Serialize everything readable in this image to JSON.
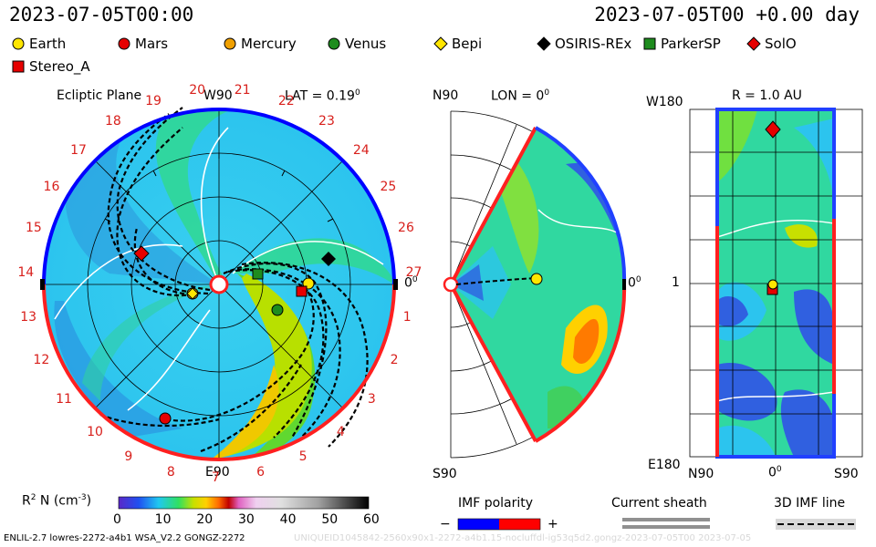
{
  "header": {
    "timestamp": "2023-07-05T00:00",
    "relative_time": "2023-07-05T00 +0.00 day"
  },
  "legend": [
    {
      "name": "Earth",
      "marker": "circle",
      "color": "#ffe600"
    },
    {
      "name": "Mars",
      "marker": "circle",
      "color": "#e60000"
    },
    {
      "name": "Mercury",
      "marker": "circle",
      "color": "#f0a000"
    },
    {
      "name": "Venus",
      "marker": "circle",
      "color": "#1e8c1e"
    },
    {
      "name": "Bepi",
      "marker": "diamond",
      "color": "#ffe600"
    },
    {
      "name": "OSIRIS-REx",
      "marker": "diamond",
      "color": "#000000"
    },
    {
      "name": "ParkerSP",
      "marker": "square",
      "color": "#1e8c1e"
    },
    {
      "name": "SolO",
      "marker": "diamond",
      "color": "#e60000"
    },
    {
      "name": "Stereo_A",
      "marker": "square",
      "color": "#e60000"
    }
  ],
  "ecliptic": {
    "title": "Ecliptic Plane",
    "lat_label": "LAT = 0.19",
    "lat_sup": "0",
    "top_label": "W90",
    "bottom_label": "E90",
    "right_label": "0",
    "right_sup": "0",
    "carrington_ticks": [
      "19",
      "20",
      "21",
      "22",
      "23",
      "24",
      "25",
      "26",
      "27",
      "1",
      "2",
      "3",
      "4",
      "5",
      "6",
      "7",
      "8",
      "9",
      "10",
      "11",
      "12",
      "13",
      "14",
      "15",
      "16",
      "17",
      "18"
    ]
  },
  "meridional": {
    "lon_label": "LON = 0",
    "lon_sup": "0",
    "top_label": "N90",
    "bottom_label": "S90",
    "right_label": "0",
    "right_sup": "0"
  },
  "radial": {
    "title": "R = 1.0 AU",
    "top_left_label": "W180",
    "bottom_left_label": "E180",
    "mid_left_label": "1",
    "x_labels": [
      "N90",
      "0",
      "S90"
    ],
    "x_sup": "0"
  },
  "colorbar": {
    "label": "R",
    "label_sup": "2",
    "label_rest": " N (cm",
    "unit_sup": "-3",
    "label_end": ")",
    "ticks": [
      "0",
      "10",
      "20",
      "30",
      "40",
      "50",
      "60"
    ]
  },
  "imf": {
    "title": "IMF polarity",
    "minus": "−",
    "plus": "+",
    "colors": [
      "#0000ff",
      "#ff0000"
    ]
  },
  "current_sheath": {
    "title": "Current sheath"
  },
  "imf_line": {
    "title": "3D IMF line"
  },
  "footer": {
    "left": "ENLIL-2.7 lowres-2272-a4b1 WSA_V2.2 GONGZ-2272",
    "right": "UNIQUEID1045842-2560x90x1-2272-a4b1.15-nocluffdl-ig53q5d2.gongz-2023-07-05T00    2023-07-05"
  }
}
